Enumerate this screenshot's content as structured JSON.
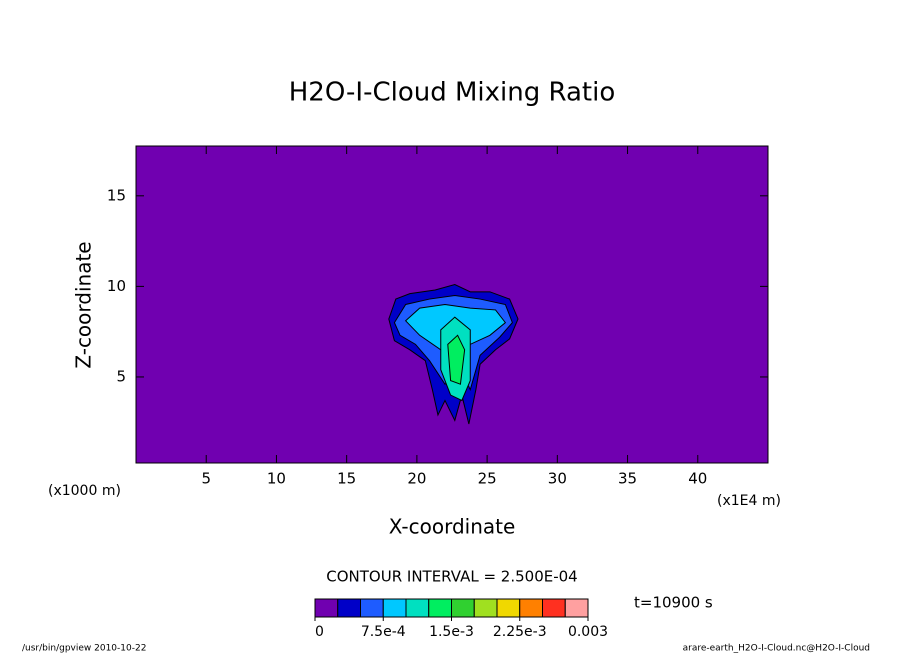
{
  "chart_data": {
    "type": "contour",
    "title": "H2O-I-Cloud Mixing Ratio",
    "xlabel": "X-coordinate",
    "ylabel": "Z-coordinate",
    "y_unit": "(x1000 m)",
    "x_unit": "(x1E4 m)",
    "xlim": [
      0,
      45
    ],
    "xticks": [
      5,
      10,
      15,
      20,
      25,
      30,
      35,
      40
    ],
    "ylim": [
      0.25,
      17.75
    ],
    "yticks": [
      5,
      10,
      15
    ],
    "background_color": "#7000b0",
    "regions": [
      {
        "color": "#0000c8",
        "x": [
          18.0,
          18.5,
          19.5,
          21.3,
          22.7,
          23.8,
          25.2,
          26.6,
          27.2,
          26.6,
          25.6,
          24.5,
          24.2,
          23.7,
          23.2,
          22.7,
          22.0,
          21.5,
          21.1,
          20.6,
          19.5,
          18.4
        ],
        "y": [
          8.2,
          9.3,
          9.6,
          9.8,
          10.1,
          9.7,
          9.7,
          9.3,
          8.2,
          7.1,
          6.5,
          5.7,
          4.3,
          2.4,
          4.0,
          2.6,
          3.7,
          2.9,
          4.3,
          5.9,
          6.5,
          7.0
        ]
      },
      {
        "color": "#1e5cff",
        "x": [
          18.4,
          19.2,
          20.9,
          22.7,
          24.5,
          26.3,
          26.8,
          25.9,
          24.5,
          23.8,
          23.1,
          22.0,
          20.9,
          19.9,
          18.8
        ],
        "y": [
          8.0,
          9.0,
          9.3,
          9.5,
          9.3,
          9.0,
          8.0,
          7.2,
          6.2,
          4.3,
          5.4,
          4.6,
          5.9,
          6.8,
          7.3
        ]
      },
      {
        "color": "#00c8ff",
        "x": [
          19.2,
          20.2,
          22.0,
          23.8,
          25.6,
          26.3,
          25.2,
          23.8,
          23.1,
          21.7,
          20.2
        ],
        "y": [
          8.1,
          8.8,
          9.0,
          8.8,
          8.7,
          8.0,
          7.3,
          6.8,
          6.2,
          6.5,
          7.3
        ]
      },
      {
        "color": "#00e0c0",
        "x": [
          21.7,
          22.7,
          23.8,
          23.8,
          23.2,
          22.4,
          21.7
        ],
        "y": [
          7.6,
          8.3,
          7.6,
          4.8,
          3.7,
          4.0,
          5.4
        ]
      },
      {
        "color": "#00ee60",
        "x": [
          22.2,
          22.9,
          23.4,
          23.1,
          22.4
        ],
        "y": [
          6.8,
          7.3,
          6.5,
          4.6,
          4.8
        ]
      }
    ],
    "contour_interval_text": "CONTOUR INTERVAL = 2.500E-04",
    "time_text": "t=10900 s",
    "colorbar": {
      "colors": [
        "#7000b0",
        "#0000c8",
        "#1e5cff",
        "#00c8ff",
        "#00e0c0",
        "#00ee60",
        "#30d030",
        "#a0e020",
        "#f0d800",
        "#ff8000",
        "#ff3020",
        "#ffa0a0"
      ],
      "lim": [
        0,
        0.003
      ],
      "ticks": [
        0,
        {
          "value": 0.00075,
          "label": "7.5e-4"
        },
        {
          "value": 0.0015,
          "label": "1.5e-3"
        },
        {
          "value": 0.00225,
          "label": "2.25e-3"
        },
        0.003
      ]
    },
    "footer_left": "/usr/bin/gpview  2010-10-22",
    "footer_right": "arare-earth_H2O-I-Cloud.nc@H2O-I-Cloud"
  }
}
